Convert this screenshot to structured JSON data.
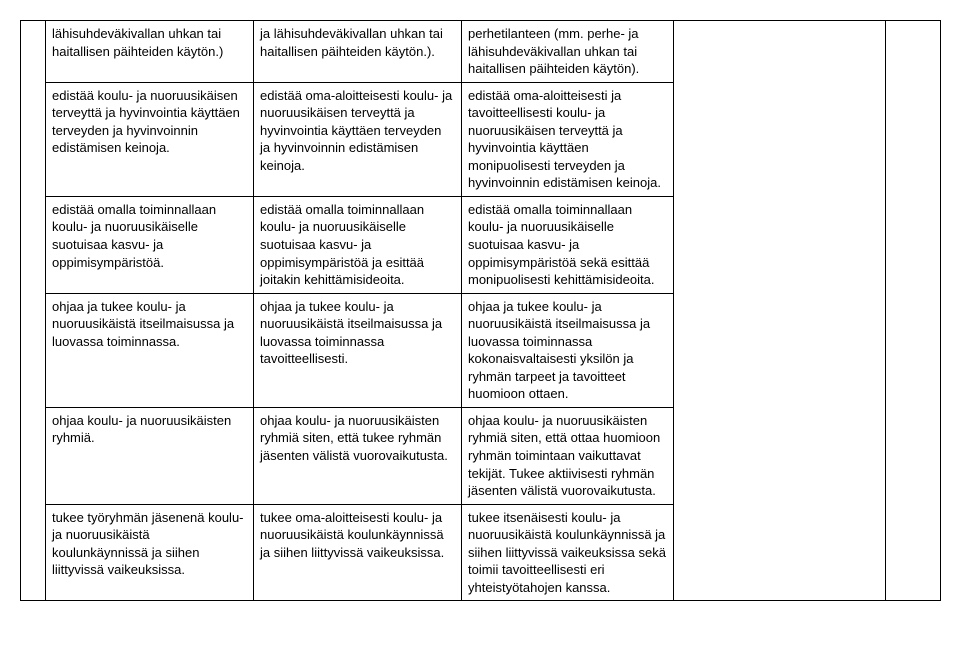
{
  "rows": [
    {
      "c2": "lähisuhdeväkivallan uhkan tai haitallisen päihteiden käytön.)",
      "c3": "ja lähisuhdeväkivallan uhkan tai haitallisen päihteiden käytön.).",
      "c4": "perhetilanteen (mm. perhe- ja lähisuhdeväkivallan uhkan tai haitallisen päihteiden käytön)."
    },
    {
      "c2": "edistää koulu- ja nuoruusikäisen terveyttä ja hyvinvointia käyttäen terveyden ja hyvinvoinnin edistämisen keinoja.",
      "c3": "edistää oma-aloitteisesti koulu- ja nuoruusikäisen terveyttä ja hyvinvointia käyttäen terveyden ja hyvinvoinnin edistämisen keinoja.",
      "c4": "edistää oma-aloitteisesti ja tavoitteellisesti koulu- ja nuoruusikäisen terveyttä ja hyvinvointia käyttäen monipuolisesti terveyden ja hyvinvoinnin edistämisen keinoja."
    },
    {
      "c2": "edistää omalla toiminnallaan koulu- ja nuoruusikäiselle suotuisaa kasvu- ja oppimisympäristöä.",
      "c3": "edistää omalla toiminnallaan koulu- ja nuoruusikäiselle suotuisaa kasvu- ja oppimisympäristöä ja esittää joitakin kehittämisideoita.",
      "c4": "edistää omalla toiminnallaan koulu- ja nuoruusikäiselle suotuisaa kasvu- ja oppimisympäristöä sekä esittää monipuolisesti kehittämisideoita."
    },
    {
      "c2": "ohjaa ja tukee koulu- ja nuoruusikäistä itseilmaisussa ja luovassa toiminnassa.",
      "c3": "ohjaa ja tukee koulu- ja nuoruusikäistä itseilmaisussa ja luovassa toiminnassa tavoitteellisesti.",
      "c4": "ohjaa ja tukee koulu- ja nuoruusikäistä itseilmaisussa ja luovassa toiminnassa kokonaisvaltaisesti yksilön ja ryhmän tarpeet ja tavoitteet huomioon ottaen."
    },
    {
      "c2": "ohjaa koulu- ja nuoruusikäisten ryhmiä.",
      "c3": "ohjaa koulu- ja nuoruusikäisten ryhmiä siten, että tukee ryhmän jäsenten välistä vuorovaikutusta.",
      "c4": "ohjaa koulu- ja nuoruusikäisten ryhmiä siten, että ottaa huomioon ryhmän toimintaan vaikuttavat tekijät. Tukee aktiivisesti ryhmän jäsenten välistä vuorovaikutusta."
    },
    {
      "c2": "tukee työryhmän jäsenenä koulu- ja nuoruusikäistä koulunkäynnissä ja siihen liittyvissä vaikeuksissa.",
      "c3": "tukee oma-aloitteisesti koulu- ja nuoruusikäistä koulunkäynnissä ja siihen liittyvissä vaikeuksissa.",
      "c4": "tukee itsenäisesti koulu- ja nuoruusikäistä koulunkäynnissä ja siihen liittyvissä vaikeuksissa sekä toimii tavoitteellisesti eri yhteistyötahojen kanssa."
    }
  ]
}
